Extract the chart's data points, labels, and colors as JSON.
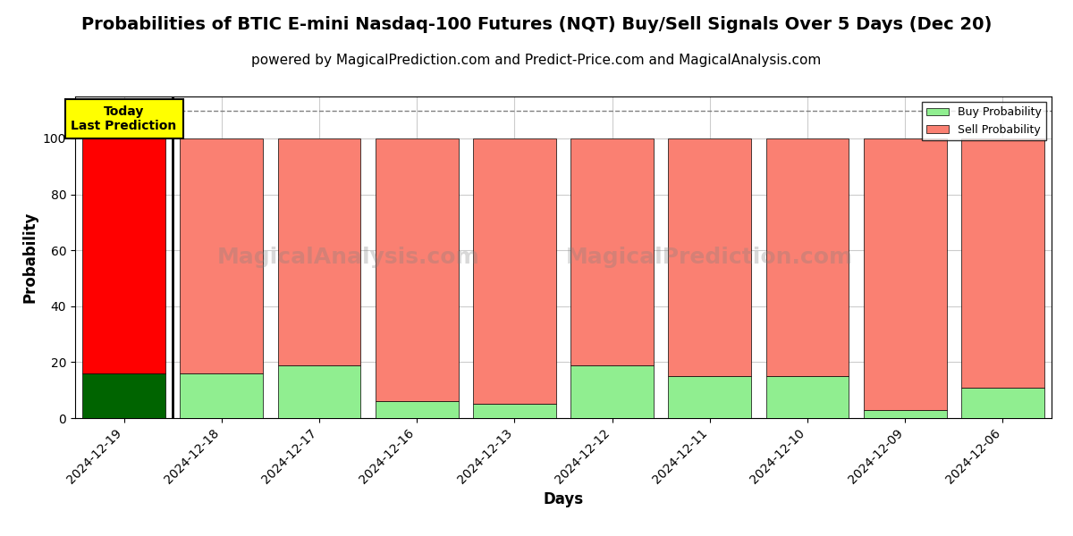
{
  "title": "Probabilities of BTIC E-mini Nasdaq-100 Futures (NQT) Buy/Sell Signals Over 5 Days (Dec 20)",
  "subtitle": "powered by MagicalPrediction.com and Predict-Price.com and MagicalAnalysis.com",
  "xlabel": "Days",
  "ylabel": "Probability",
  "categories": [
    "2024-12-19",
    "2024-12-18",
    "2024-12-17",
    "2024-12-16",
    "2024-12-13",
    "2024-12-12",
    "2024-12-11",
    "2024-12-10",
    "2024-12-09",
    "2024-12-06"
  ],
  "buy_values": [
    16,
    16,
    19,
    6,
    5,
    19,
    15,
    15,
    3,
    11
  ],
  "sell_values": [
    84,
    84,
    81,
    94,
    95,
    81,
    85,
    85,
    97,
    89
  ],
  "today_buy_color": "#006400",
  "today_sell_color": "#ff0000",
  "buy_color": "#90EE90",
  "sell_color": "#FA8072",
  "today_label": "Today\nLast Prediction",
  "today_label_bg": "#ffff00",
  "legend_buy": "Buy Probability",
  "legend_sell": "Sell Probability",
  "ylim": [
    0,
    115
  ],
  "dashed_line_y": 110,
  "watermark1": "MagicalAnalysis.com",
  "watermark2": "MagicalPrediction.com",
  "background_color": "#ffffff",
  "grid_color": "#cccccc",
  "title_fontsize": 14,
  "subtitle_fontsize": 11,
  "axis_label_fontsize": 12,
  "tick_fontsize": 10
}
